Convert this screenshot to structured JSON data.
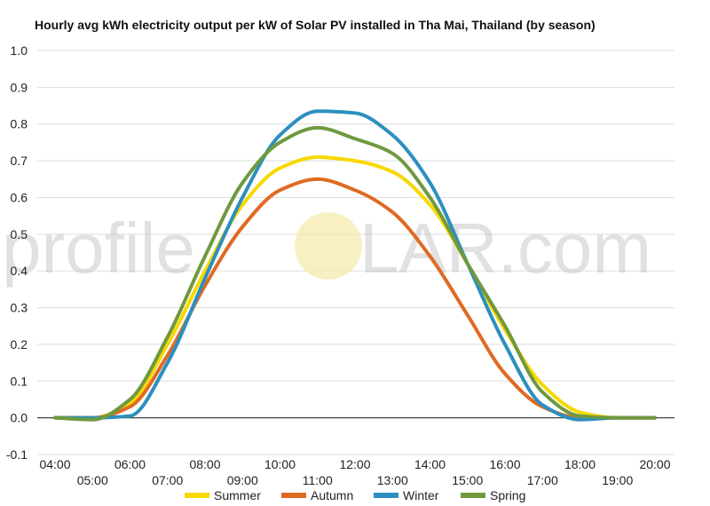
{
  "watermark": {
    "left": "profile",
    "sun_letter": "S",
    "right": "LAR.com"
  },
  "chart_data": {
    "type": "line",
    "title": "Hourly avg kWh electricity output per kW of Solar PV installed in Tha Mai, Thailand (by season)",
    "xlabel": "",
    "ylabel": "",
    "ylim": [
      -0.1,
      1.0
    ],
    "yticks": [
      -0.1,
      0.0,
      0.1,
      0.2,
      0.3,
      0.4,
      0.5,
      0.6,
      0.7,
      0.8,
      0.9,
      1.0
    ],
    "ytick_labels": [
      "-0.1",
      "0.0",
      "0.1",
      "0.2",
      "0.3",
      "0.4",
      "0.5",
      "0.6",
      "0.7",
      "0.8",
      "0.9",
      "1.0"
    ],
    "x": [
      4,
      5,
      6,
      7,
      8,
      9,
      10,
      11,
      12,
      13,
      14,
      15,
      16,
      17,
      18,
      19,
      20
    ],
    "x_labels": [
      "04:00",
      "05:00",
      "06:00",
      "07:00",
      "08:00",
      "09:00",
      "10:00",
      "11:00",
      "12:00",
      "13:00",
      "14:00",
      "15:00",
      "16:00",
      "17:00",
      "18:00",
      "19:00",
      "20:00"
    ],
    "grid": true,
    "legend_position": "bottom",
    "series": [
      {
        "name": "Summer",
        "color": "#f7d800",
        "values": [
          0.0,
          0.0,
          0.04,
          0.2,
          0.4,
          0.58,
          0.68,
          0.71,
          0.7,
          0.67,
          0.58,
          0.42,
          0.24,
          0.09,
          0.015,
          0.0,
          0.0
        ]
      },
      {
        "name": "Autumn",
        "color": "#e06a23",
        "values": [
          0.0,
          0.0,
          0.03,
          0.17,
          0.36,
          0.52,
          0.62,
          0.65,
          0.62,
          0.56,
          0.44,
          0.28,
          0.12,
          0.03,
          0.0,
          0.0,
          0.0
        ]
      },
      {
        "name": "Winter",
        "color": "#2c8fbf",
        "values": [
          0.0,
          0.0,
          0.005,
          0.15,
          0.38,
          0.6,
          0.77,
          0.835,
          0.83,
          0.77,
          0.64,
          0.42,
          0.2,
          0.035,
          -0.005,
          0.0,
          0.0
        ]
      },
      {
        "name": "Spring",
        "color": "#70993f",
        "values": [
          0.0,
          -0.005,
          0.05,
          0.22,
          0.44,
          0.64,
          0.75,
          0.79,
          0.76,
          0.72,
          0.6,
          0.42,
          0.25,
          0.07,
          0.005,
          0.0,
          0.0
        ]
      }
    ]
  }
}
